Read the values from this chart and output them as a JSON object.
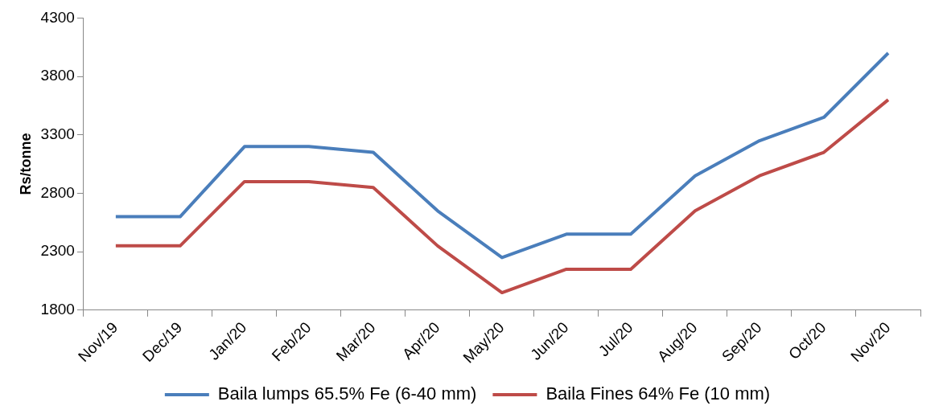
{
  "chart_data": {
    "type": "line",
    "ylabel": "Rs/tonne",
    "categories": [
      "Nov/19",
      "Dec/19",
      "Jan/20",
      "Feb/20",
      "Mar/20",
      "Apr/20",
      "May/20",
      "Jun/20",
      "Jul/20",
      "Aug/20",
      "Sep/20",
      "Oct/20",
      "Nov/20"
    ],
    "series": [
      {
        "name": "Baila lumps 65.5% Fe (6-40 mm)",
        "color": "#4a7ebb",
        "values": [
          2600,
          2600,
          3200,
          3200,
          3150,
          2650,
          2250,
          2450,
          2450,
          2950,
          3250,
          3450,
          4000
        ]
      },
      {
        "name": "Baila Fines 64% Fe (10 mm)",
        "color": "#be4b48",
        "values": [
          2350,
          2350,
          2900,
          2900,
          2850,
          2350,
          1950,
          2150,
          2150,
          2650,
          2950,
          3150,
          3600
        ]
      }
    ],
    "ylim": [
      1800,
      4300
    ],
    "yticks": [
      1800,
      2300,
      2800,
      3300,
      3800,
      4300
    ],
    "grid": false,
    "legend": "bottom",
    "marker": "none",
    "line_style": "solid"
  }
}
